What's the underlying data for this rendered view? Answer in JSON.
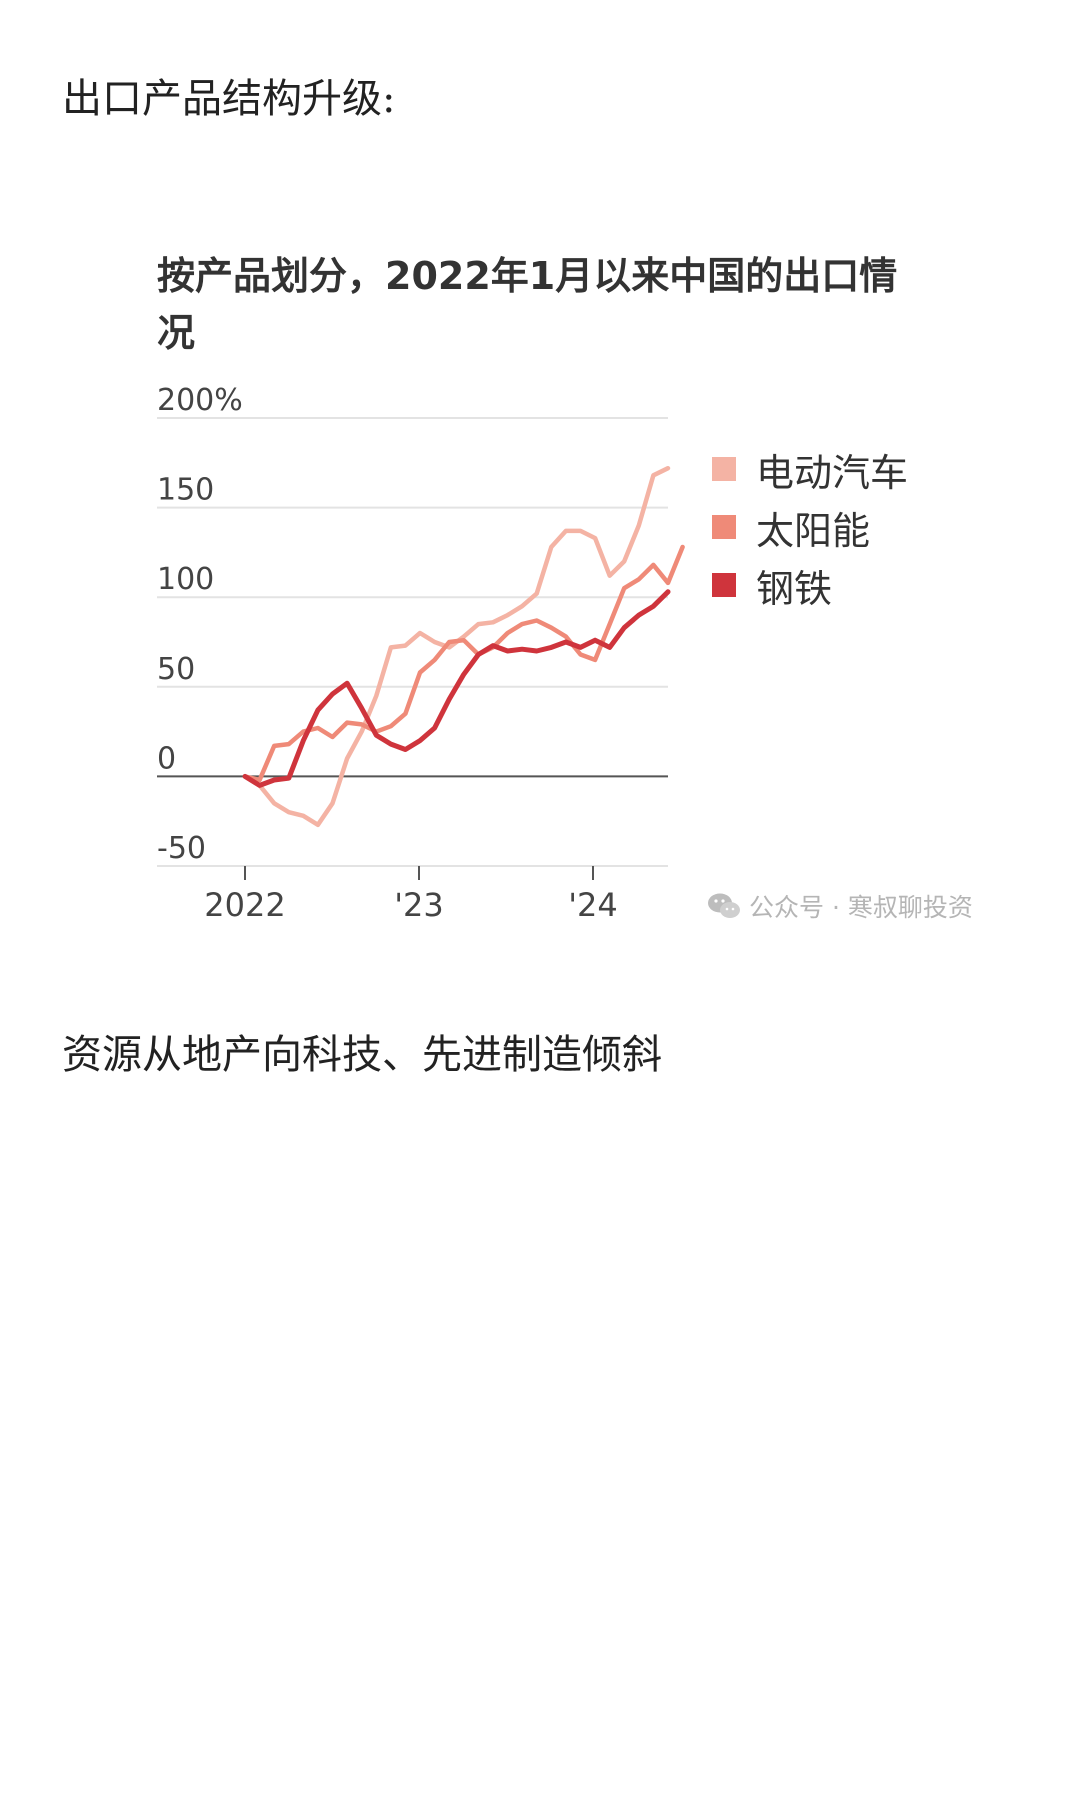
{
  "article": {
    "para1": "出口产品结构升级:",
    "para2": "资源从地产向科技、先进制造倾斜",
    "watermark": "公众号 · 寒叔聊投资"
  },
  "chart_data": {
    "type": "line",
    "title": "按产品划分，2022年1月以来中国的出口情况",
    "y_ticks": [
      "200%",
      "150",
      "100",
      "50",
      "0",
      "-50"
    ],
    "y_tick_values": [
      200,
      150,
      100,
      50,
      0,
      -50
    ],
    "x_ticks": [
      "2022",
      "'23",
      "'24"
    ],
    "ylim": [
      -50,
      200
    ],
    "grid": true,
    "legend_position": "right",
    "series": [
      {
        "name": "电动汽车",
        "color": "#f4b3a4",
        "values": [
          0,
          -5,
          -15,
          -20,
          -22,
          -27,
          -15,
          10,
          25,
          45,
          72,
          73,
          80,
          75,
          72,
          78,
          85,
          86,
          90,
          95,
          102,
          128,
          137,
          137,
          133,
          112,
          120,
          140,
          168,
          172
        ]
      },
      {
        "name": "太阳能",
        "color": "#ef8a78",
        "values": [
          0,
          -2,
          17,
          18,
          25,
          27,
          22,
          30,
          29,
          25,
          28,
          35,
          58,
          65,
          75,
          76,
          68,
          72,
          80,
          85,
          87,
          83,
          78,
          68,
          65,
          85,
          105,
          110,
          118,
          108,
          128
        ]
      },
      {
        "name": "钢铁",
        "color": "#cf343c",
        "values": [
          0,
          -5,
          -2,
          -1,
          20,
          37,
          46,
          52,
          38,
          23,
          18,
          15,
          20,
          27,
          43,
          57,
          68,
          73,
          70,
          71,
          70,
          72,
          75,
          72,
          76,
          72,
          83,
          90,
          95,
          103
        ]
      }
    ]
  }
}
